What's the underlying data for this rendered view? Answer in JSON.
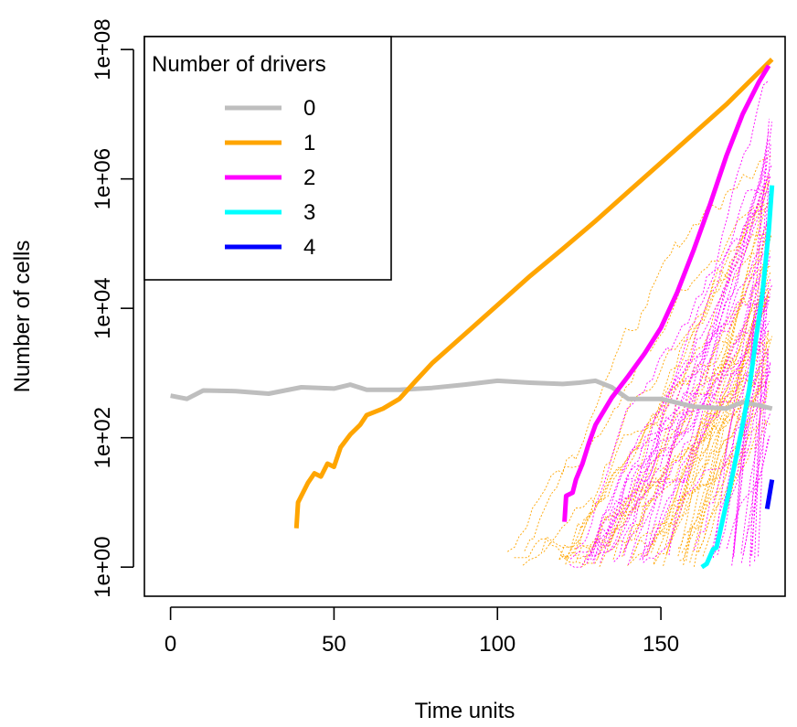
{
  "chart_data": {
    "type": "line",
    "xlabel": "Time units",
    "ylabel": "Number of cells",
    "y_scale": "log10",
    "xlim": [
      -8,
      188
    ],
    "ylim_log10": [
      -0.45,
      8.2
    ],
    "x_ticks": [
      0,
      50,
      100,
      150
    ],
    "x_tick_labels": [
      "0",
      "50",
      "100",
      "150"
    ],
    "y_ticks_log10": [
      0,
      2,
      4,
      6,
      8
    ],
    "y_tick_labels": [
      "1e+00",
      "1e+02",
      "1e+04",
      "1e+06",
      "1e+08"
    ],
    "grid": false,
    "legend": {
      "title": "Number of drivers",
      "placement": "top-left",
      "entries": [
        {
          "label": "0",
          "color": "#bebebe"
        },
        {
          "label": "1",
          "color": "#ffa500"
        },
        {
          "label": "2",
          "color": "#ff00ff"
        },
        {
          "label": "3",
          "color": "#00ffff"
        },
        {
          "label": "4",
          "color": "#0000ff"
        }
      ]
    },
    "series": [
      {
        "name": "0",
        "color": "#bebebe",
        "style": "thick",
        "points": [
          [
            0,
            2.65
          ],
          [
            5,
            2.6
          ],
          [
            10,
            2.73
          ],
          [
            20,
            2.72
          ],
          [
            30,
            2.68
          ],
          [
            40,
            2.78
          ],
          [
            50,
            2.76
          ],
          [
            55,
            2.82
          ],
          [
            60,
            2.74
          ],
          [
            70,
            2.74
          ],
          [
            80,
            2.77
          ],
          [
            90,
            2.82
          ],
          [
            100,
            2.88
          ],
          [
            110,
            2.85
          ],
          [
            120,
            2.83
          ],
          [
            125,
            2.85
          ],
          [
            130,
            2.88
          ],
          [
            135,
            2.78
          ],
          [
            140,
            2.6
          ],
          [
            150,
            2.6
          ],
          [
            160,
            2.48
          ],
          [
            170,
            2.45
          ],
          [
            175,
            2.55
          ],
          [
            180,
            2.5
          ],
          [
            184,
            2.45
          ]
        ]
      },
      {
        "name": "1",
        "color": "#ffa500",
        "style": "thick",
        "points": [
          [
            38.5,
            0.6
          ],
          [
            39,
            1.0
          ],
          [
            42,
            1.3
          ],
          [
            44,
            1.45
          ],
          [
            46,
            1.4
          ],
          [
            48,
            1.6
          ],
          [
            50,
            1.55
          ],
          [
            52,
            1.85
          ],
          [
            55,
            2.05
          ],
          [
            58,
            2.2
          ],
          [
            60,
            2.35
          ],
          [
            65,
            2.45
          ],
          [
            70,
            2.6
          ],
          [
            75,
            2.88
          ],
          [
            80,
            3.15
          ],
          [
            90,
            3.6
          ],
          [
            100,
            4.05
          ],
          [
            110,
            4.5
          ],
          [
            120,
            4.92
          ],
          [
            130,
            5.35
          ],
          [
            140,
            5.8
          ],
          [
            150,
            6.25
          ],
          [
            160,
            6.7
          ],
          [
            170,
            7.15
          ],
          [
            178,
            7.55
          ],
          [
            184,
            7.85
          ]
        ]
      },
      {
        "name": "2",
        "color": "#ff00ff",
        "style": "thick",
        "points": [
          [
            120.5,
            0.7
          ],
          [
            121,
            1.1
          ],
          [
            123,
            1.15
          ],
          [
            124,
            1.35
          ],
          [
            126,
            1.6
          ],
          [
            128,
            1.92
          ],
          [
            130,
            2.2
          ],
          [
            135,
            2.62
          ],
          [
            140,
            2.95
          ],
          [
            145,
            3.3
          ],
          [
            150,
            3.7
          ],
          [
            155,
            4.25
          ],
          [
            160,
            4.9
          ],
          [
            165,
            5.6
          ],
          [
            170,
            6.35
          ],
          [
            175,
            7.0
          ],
          [
            180,
            7.5
          ],
          [
            183,
            7.75
          ]
        ]
      },
      {
        "name": "3",
        "color": "#00ffff",
        "style": "thick",
        "points": [
          [
            162.5,
            0.0
          ],
          [
            164,
            0.05
          ],
          [
            166,
            0.28
          ],
          [
            167,
            0.3
          ],
          [
            169,
            0.75
          ],
          [
            171,
            1.2
          ],
          [
            173,
            1.7
          ],
          [
            175,
            2.2
          ],
          [
            177,
            2.75
          ],
          [
            179,
            3.5
          ],
          [
            181,
            4.2
          ],
          [
            183,
            5.2
          ],
          [
            184,
            5.9
          ]
        ]
      },
      {
        "name": "4",
        "color": "#0000ff",
        "style": "thick",
        "points": [
          [
            182.5,
            0.9
          ],
          [
            183,
            1.05
          ],
          [
            184,
            1.35
          ]
        ]
      }
    ]
  }
}
